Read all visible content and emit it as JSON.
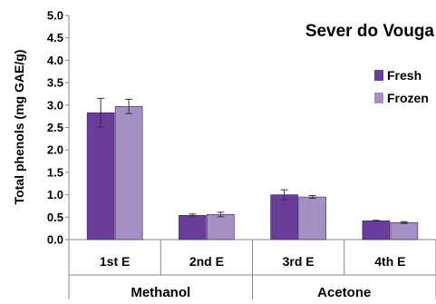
{
  "chart_data": {
    "type": "bar",
    "title": "Sever do Vouga",
    "xlabel": "",
    "ylabel": "Total phenols (mg GAE/g)",
    "ylim": [
      0,
      5
    ],
    "ytick_step": 0.5,
    "yticks": [
      "0.0",
      "0.5",
      "1.0",
      "1.5",
      "2.0",
      "2.5",
      "3.0",
      "3.5",
      "4.0",
      "4.5",
      "5.0"
    ],
    "categories": [
      "1st E",
      "2nd E",
      "3rd E",
      "4th E"
    ],
    "groups": [
      {
        "label": "Methanol",
        "categories": [
          "1st E",
          "2nd E"
        ]
      },
      {
        "label": "Acetone",
        "categories": [
          "3rd E",
          "4th E"
        ]
      }
    ],
    "series": [
      {
        "name": "Fresh",
        "color": "#6a3d9a",
        "values": [
          2.83,
          0.54,
          1.0,
          0.42
        ],
        "errors": [
          0.32,
          0.03,
          0.11,
          0.01
        ]
      },
      {
        "name": "Frozen",
        "color": "#a590c4",
        "values": [
          2.97,
          0.56,
          0.95,
          0.38
        ],
        "errors": [
          0.16,
          0.05,
          0.03,
          0.02
        ]
      }
    ],
    "legend_position": "top-right",
    "grid": false
  }
}
